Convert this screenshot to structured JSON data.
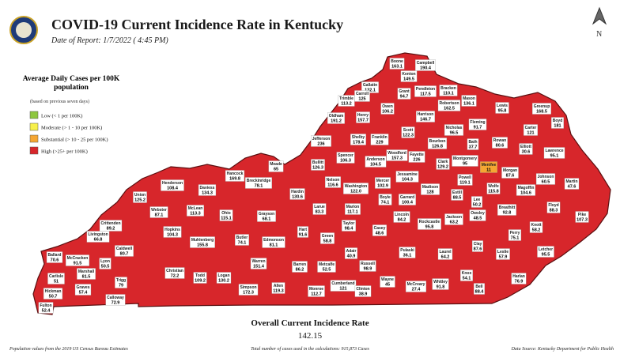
{
  "header": {
    "title": "COVID-19 Current Incidence Rate in Kentucky",
    "subtitle": "Date of Report: 1/7/2022 ( 4:45 PM)"
  },
  "legend": {
    "title": "Average Daily Cases per 100K population",
    "note": "(based on previous seven days)",
    "items": [
      {
        "label": "Low (< 1 per 100K)",
        "color": "#8dc63f"
      },
      {
        "label": "Moderate (> 1 - 10 per 100K)",
        "color": "#f7f04a"
      },
      {
        "label": "Substantial (> 10 - 25 per 100K)",
        "color": "#f5a632"
      },
      {
        "label": "High (>25+ per 100K)",
        "color": "#d7262b"
      }
    ]
  },
  "map": {
    "color": "#d7262b",
    "counties": [
      {
        "name": "Boone",
        "value": 163.1
      },
      {
        "name": "Campbell",
        "value": 190.4
      },
      {
        "name": "Kenton",
        "value": 149.5
      },
      {
        "name": "Gallatin",
        "value": 132.1
      },
      {
        "name": "Grant",
        "value": 94.7
      },
      {
        "name": "Pendleton",
        "value": 117.5
      },
      {
        "name": "Bracken",
        "value": 110.1
      },
      {
        "name": "Mason",
        "value": 136.1
      },
      {
        "name": "Trimble",
        "value": 113.2
      },
      {
        "name": "Carroll",
        "value": 125
      },
      {
        "name": "Owen",
        "value": 106.2
      },
      {
        "name": "Robertson",
        "value": 162.5
      },
      {
        "name": "Henry",
        "value": 157.7
      },
      {
        "name": "Harrison",
        "value": 146.7
      },
      {
        "name": "Lewis",
        "value": 95.8
      },
      {
        "name": "Greenup",
        "value": 168.5
      },
      {
        "name": "Fleming",
        "value": 91.7
      },
      {
        "name": "Boyd",
        "value": 181
      },
      {
        "name": "Oldham",
        "value": 191.2
      },
      {
        "name": "Nicholas",
        "value": 96.5
      },
      {
        "name": "Carter",
        "value": 121
      },
      {
        "name": "Scott",
        "value": 122.3
      },
      {
        "name": "Franklin",
        "value": 229
      },
      {
        "name": "Shelby",
        "value": 178.4
      },
      {
        "name": "Bath",
        "value": 37.7
      },
      {
        "name": "Rowan",
        "value": 80.6
      },
      {
        "name": "Bourbon",
        "value": 126.8
      },
      {
        "name": "Elliott",
        "value": 30.6
      },
      {
        "name": "Jefferson",
        "value": 236
      },
      {
        "name": "Woodford",
        "value": 157.3
      },
      {
        "name": "Fayette",
        "value": 226
      },
      {
        "name": "Anderson",
        "value": 104.5
      },
      {
        "name": "Spencer",
        "value": 106.3
      },
      {
        "name": "Bullitt",
        "value": 126.3
      },
      {
        "name": "Clark",
        "value": 129.2
      },
      {
        "name": "Montgomery",
        "value": 95
      },
      {
        "name": "Menifee",
        "value": 11,
        "color": "#f5a632"
      },
      {
        "name": "Morgan",
        "value": 87.6
      },
      {
        "name": "Lawrence",
        "value": 95.1
      },
      {
        "name": "Johnson",
        "value": 60.5
      },
      {
        "name": "Martin",
        "value": 47.6
      },
      {
        "name": "Meade",
        "value": 65
      },
      {
        "name": "Hancock",
        "value": 169.8
      },
      {
        "name": "Breckinridge",
        "value": 78.1
      },
      {
        "name": "Jessamine",
        "value": 104.3
      },
      {
        "name": "Powell",
        "value": 119.1
      },
      {
        "name": "Wolfe",
        "value": 115.8
      },
      {
        "name": "Mercer",
        "value": 102.9
      },
      {
        "name": "Nelson",
        "value": 116.6
      },
      {
        "name": "Washington",
        "value": "122.0"
      },
      {
        "name": "Madison",
        "value": 128
      },
      {
        "name": "Estill",
        "value": 88.5
      },
      {
        "name": "Magoffin",
        "value": 104.6
      },
      {
        "name": "Henderson",
        "value": 108.4
      },
      {
        "name": "Daviess",
        "value": 134.3
      },
      {
        "name": "Hardin",
        "value": 130.6
      },
      {
        "name": "Boyle",
        "value": 74.1
      },
      {
        "name": "Garrard",
        "value": 100.4
      },
      {
        "name": "Lee",
        "value": 50.2
      },
      {
        "name": "Floyd",
        "value": 88.3
      },
      {
        "name": "Union",
        "value": 125.2
      },
      {
        "name": "Larue",
        "value": 83.3
      },
      {
        "name": "Marion",
        "value": 117.1
      },
      {
        "name": "Breathitt",
        "value": 92.8
      },
      {
        "name": "Webster",
        "value": 87.1
      },
      {
        "name": "McLean",
        "value": 113.3
      },
      {
        "name": "Ohio",
        "value": 115.1
      },
      {
        "name": "Grayson",
        "value": 68.1
      },
      {
        "name": "Owsley",
        "value": 48.5
      },
      {
        "name": "Jackson",
        "value": 63.2
      },
      {
        "name": "Pike",
        "value": 107.3
      },
      {
        "name": "Lincoln",
        "value": 84.2
      },
      {
        "name": "Rockcastle",
        "value": 95.8
      },
      {
        "name": "Taylor",
        "value": 98.4
      },
      {
        "name": "Casey",
        "value": 48.6
      },
      {
        "name": "Crittenden",
        "value": 89.2
      },
      {
        "name": "Hopkins",
        "value": 104.3
      },
      {
        "name": "Hart",
        "value": 91.6
      },
      {
        "name": "Knott",
        "value": 58.2
      },
      {
        "name": "Perry",
        "value": 75.1
      },
      {
        "name": "Livingston",
        "value": 66.8
      },
      {
        "name": "Green",
        "value": 58.8
      },
      {
        "name": "Muhlenberg",
        "value": 155.8
      },
      {
        "name": "Butler",
        "value": 74.1
      },
      {
        "name": "Edmonson",
        "value": 81.1
      },
      {
        "name": "Caldwell",
        "value": 80.7
      },
      {
        "name": "Clay",
        "value": 87.6
      },
      {
        "name": "Letcher",
        "value": 95.5
      },
      {
        "name": "Pulaski",
        "value": 36.1
      },
      {
        "name": "Laurel",
        "value": 64.2
      },
      {
        "name": "Leslie",
        "value": 57.9
      },
      {
        "name": "Ballard",
        "value": 70.6
      },
      {
        "name": "McCracken",
        "value": 91.5
      },
      {
        "name": "Adair",
        "value": 40.9
      },
      {
        "name": "Lyon",
        "value": 50.5
      },
      {
        "name": "Warren",
        "value": 151.4
      },
      {
        "name": "Barren",
        "value": 86.2
      },
      {
        "name": "Metcalfe",
        "value": 52.5
      },
      {
        "name": "Russell",
        "value": 98.9
      },
      {
        "name": "Marshall",
        "value": 81.5
      },
      {
        "name": "Christian",
        "value": 72.2
      },
      {
        "name": "Todd",
        "value": 109.2
      },
      {
        "name": "Logan",
        "value": 130.2
      },
      {
        "name": "Carlisle",
        "value": 51
      },
      {
        "name": "Knox",
        "value": 54.1
      },
      {
        "name": "Harlan",
        "value": 76.9
      },
      {
        "name": "Graves",
        "value": 57.4
      },
      {
        "name": "Trigg",
        "value": 79
      },
      {
        "name": "Simpson",
        "value": 172.3
      },
      {
        "name": "Allen",
        "value": 119.3
      },
      {
        "name": "Monroe",
        "value": 112.7
      },
      {
        "name": "Cumberland",
        "value": 121
      },
      {
        "name": "Clinton",
        "value": 38.9
      },
      {
        "name": "Wayne",
        "value": 45
      },
      {
        "name": "McCreary",
        "value": 27.4
      },
      {
        "name": "Whitley",
        "value": 91.8
      },
      {
        "name": "Bell",
        "value": 88.4
      },
      {
        "name": "Hickman",
        "value": 50.7
      },
      {
        "name": "Calloway",
        "value": 72.9
      },
      {
        "name": "Fulton",
        "value": 52.4
      }
    ]
  },
  "summary": {
    "label": "Overall Current Incidence Rate",
    "value": 142.15
  },
  "footer": {
    "left": "Population values from the 2019 US Census Bureau Estimates",
    "center": "Total number of cases used in the calculations: 915,873 Cases",
    "right": "Data Source: Kentucky Department for Public Health"
  }
}
